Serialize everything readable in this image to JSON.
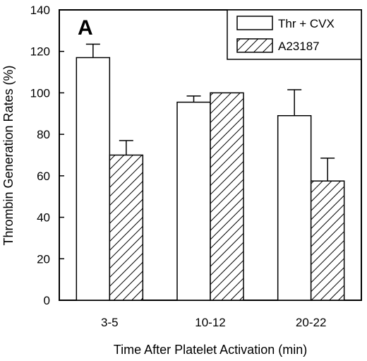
{
  "chart_data": {
    "type": "bar",
    "panel_label": "A",
    "xlabel": "Time After Platelet Activation  (min)",
    "ylabel": "Thrombin Generation Rates (%)",
    "categories": [
      "3-5",
      "10-12",
      "20-22"
    ],
    "ylim": [
      0,
      140
    ],
    "yticks": [
      "0",
      "20",
      "40",
      "60",
      "80",
      "100",
      "120",
      "140"
    ],
    "series": [
      {
        "name": "Thr + CVX",
        "values": [
          117,
          95.5,
          89
        ],
        "errors": [
          6.5,
          3,
          12.5
        ],
        "fill": "open"
      },
      {
        "name": "A23187",
        "values": [
          70,
          100,
          57.5
        ],
        "errors": [
          7,
          0,
          11
        ],
        "fill": "hatched"
      }
    ],
    "legend_position": "top-right",
    "grid": false,
    "colors": {
      "stroke": "#000000",
      "background": "#ffffff"
    }
  }
}
